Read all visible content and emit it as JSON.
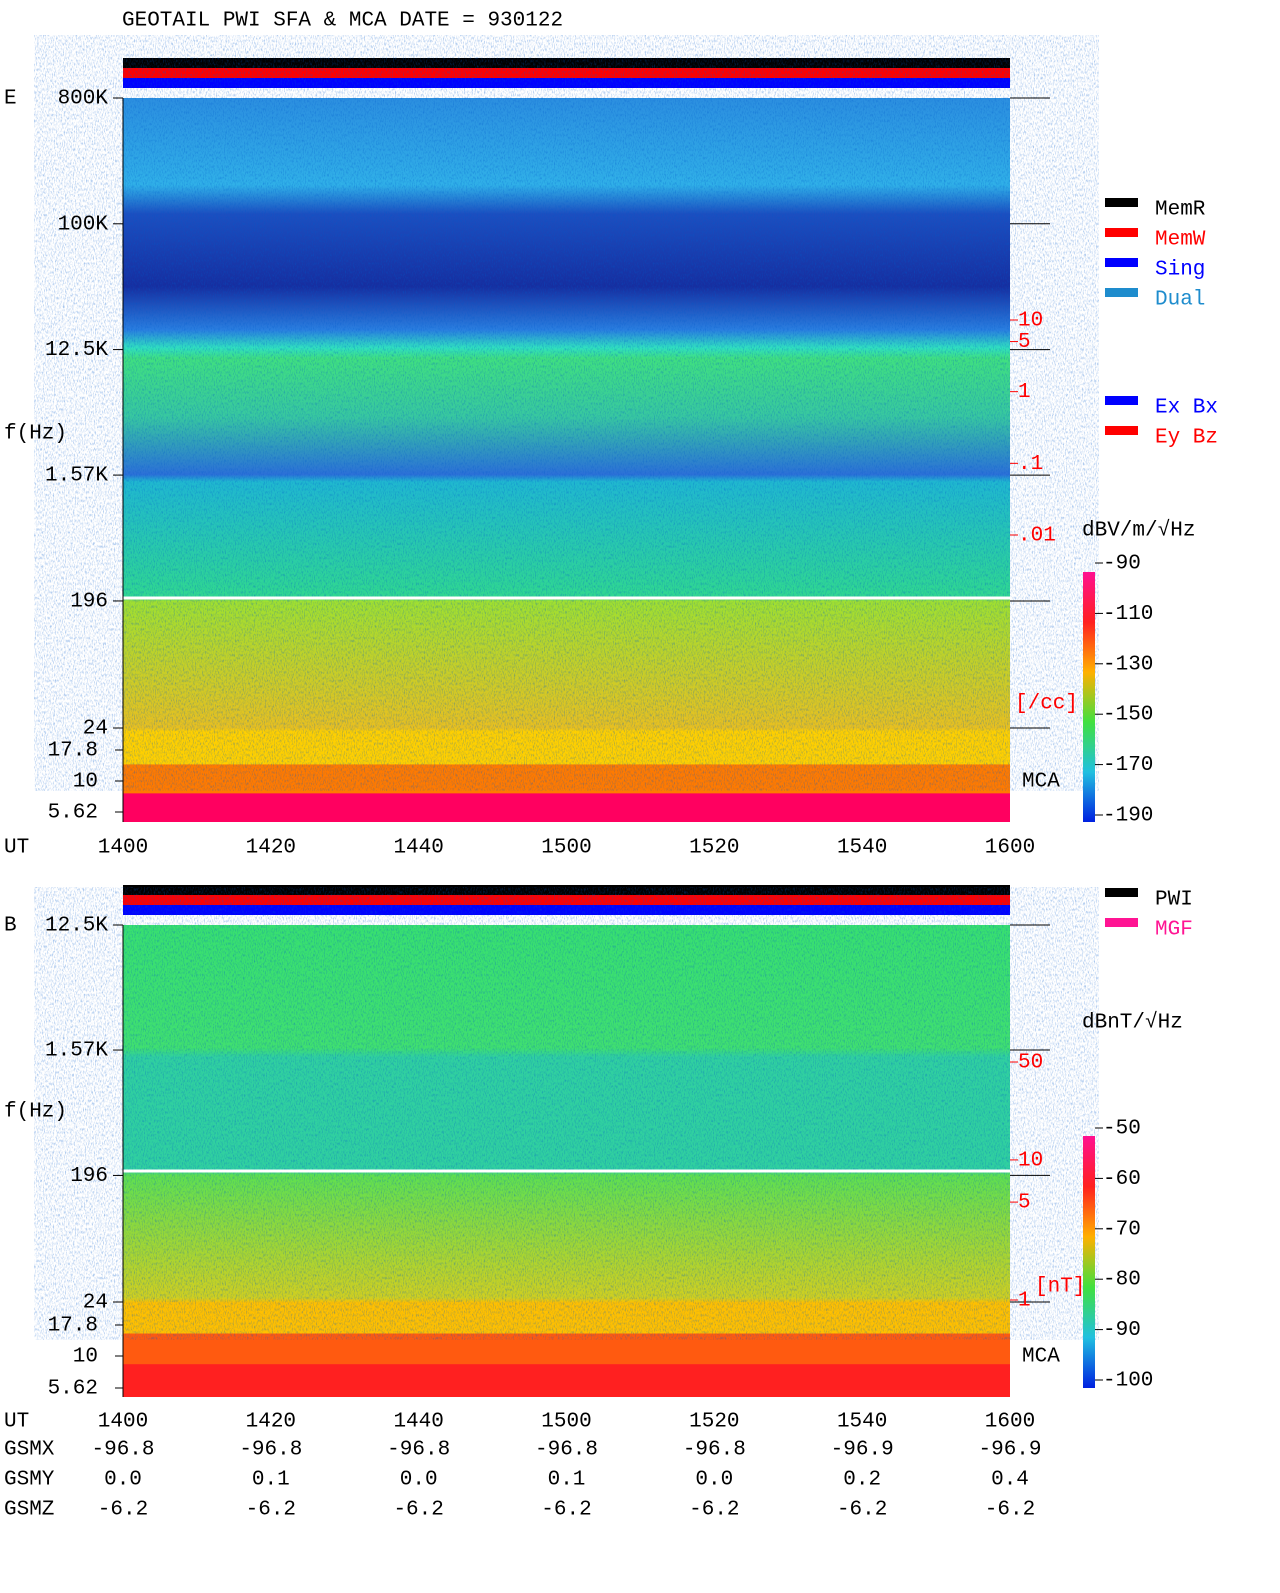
{
  "title": "GEOTAIL  PWI SFA & MCA   DATE = 930122",
  "chart_data": [
    {
      "type": "spectrogram",
      "panel_label": "E",
      "ylabel": "f(Hz)",
      "ylog": true,
      "ylim": [
        24,
        800000
      ],
      "yticks": [
        {
          "value": 800000,
          "label": "800K"
        },
        {
          "value": 100000,
          "label": "100K"
        },
        {
          "value": 12500,
          "label": "12.5K"
        },
        {
          "value": 1570,
          "label": "1.57K"
        },
        196,
        24
      ],
      "mca_label": "MCA",
      "mca_ticks": [
        17.8,
        10,
        5.62
      ],
      "xlabel": "UT",
      "categories": [
        "1400",
        "1420",
        "1440",
        "1500",
        "1520",
        "1540",
        "1600"
      ],
      "y2log": true,
      "y2lim": [
        0.01,
        10
      ],
      "y2ticks": [
        10,
        5,
        1,
        {
          "value": 0.1,
          "label": ".1"
        },
        {
          "value": 0.01,
          "label": ".01"
        }
      ],
      "y2label": "[/cc]",
      "y2color": "#ff0000",
      "colorbar": {
        "title": "dBV/m/√Hz",
        "lim": [
          -90,
          -190
        ],
        "ticks": [
          -90,
          -110,
          -130,
          -150,
          -170,
          -190
        ]
      },
      "legend": [
        [
          {
            "name": "MemR",
            "color": "#000000"
          },
          {
            "name": "MemW",
            "color": "#ff0000"
          },
          {
            "name": "Sing",
            "color": "#0000ff"
          },
          {
            "name": "Dual",
            "color": "#1e8ccd"
          }
        ],
        [
          {
            "name": "Ex Bx",
            "color": "#0000ff"
          },
          {
            "name": "Ey Bz",
            "color": "#ff0000"
          }
        ]
      ]
    },
    {
      "type": "spectrogram",
      "panel_label": "B",
      "ylabel": "f(Hz)",
      "ylog": true,
      "ylim": [
        24,
        12500
      ],
      "yticks": [
        {
          "value": 12500,
          "label": "12.5K"
        },
        {
          "value": 1570,
          "label": "1.57K"
        },
        196,
        24
      ],
      "mca_label": "MCA",
      "mca_ticks": [
        17.8,
        10,
        5.62
      ],
      "xlabel": "UT",
      "categories": [
        "1400",
        "1420",
        "1440",
        "1500",
        "1520",
        "1540",
        "1600"
      ],
      "y2log": true,
      "y2lim": [
        1,
        50
      ],
      "y2ticks": [
        50,
        10,
        5,
        1
      ],
      "y2label": "[nT]",
      "y2color": "#ff0000",
      "colorbar": {
        "title": "dBnT/√Hz",
        "lim": [
          -50,
          -100
        ],
        "ticks": [
          -50,
          -60,
          -70,
          -80,
          -90,
          -100
        ]
      },
      "legend": [
        [
          {
            "name": "PWI",
            "color": "#000000"
          },
          {
            "name": "MGF",
            "color": "#ff1493"
          }
        ]
      ]
    }
  ],
  "orbit": {
    "rows": [
      {
        "name": "GSMX",
        "values": [
          "-96.8",
          "-96.8",
          "-96.8",
          "-96.8",
          "-96.8",
          "-96.9",
          "-96.9"
        ]
      },
      {
        "name": "GSMY",
        "values": [
          "0.0",
          "0.1",
          "0.0",
          "0.1",
          "0.0",
          "0.2",
          "0.4"
        ]
      },
      {
        "name": "GSMZ",
        "values": [
          "-6.2",
          "-6.2",
          "-6.2",
          "-6.2",
          "-6.2",
          "-6.2",
          "-6.2"
        ]
      }
    ]
  }
}
